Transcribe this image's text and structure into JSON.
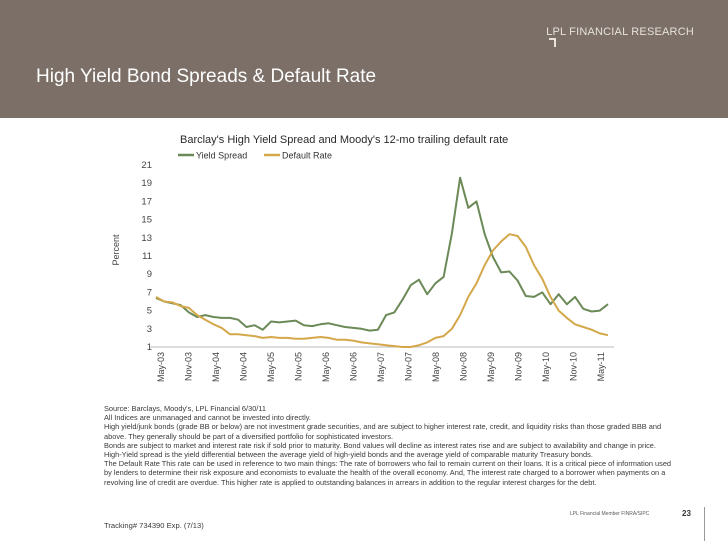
{
  "header": {
    "brand": "LPL FINANCIAL RESEARCH",
    "title": "High Yield Bond Spreads & Default Rate"
  },
  "chart_data": {
    "type": "line",
    "title": "Barclay's High Yield Spread and Moody's 12-mo trailing default rate",
    "ylabel": "Percent",
    "xlabel": "",
    "ylim": [
      1,
      21
    ],
    "yticks": [
      1,
      3,
      5,
      7,
      9,
      11,
      13,
      15,
      17,
      19,
      21
    ],
    "xticks": [
      "May-03",
      "Nov-03",
      "May-04",
      "Nov-04",
      "May-05",
      "Nov-05",
      "May-06",
      "Nov-06",
      "May-07",
      "Nov-07",
      "May-08",
      "Nov-08",
      "May-09",
      "Nov-09",
      "May-10",
      "Nov-10",
      "May-11"
    ],
    "grid": false,
    "legend_position": "top",
    "series": [
      {
        "name": "Yield Spread",
        "color": "#6b8a57",
        "values": [
          6.4,
          6.0,
          5.8,
          5.6,
          4.8,
          4.3,
          4.5,
          4.3,
          4.2,
          4.2,
          4.0,
          3.2,
          3.4,
          2.9,
          3.8,
          3.7,
          3.8,
          3.9,
          3.4,
          3.3,
          3.5,
          3.6,
          3.4,
          3.2,
          3.1,
          3.0,
          2.8,
          2.9,
          4.5,
          4.8,
          6.2,
          7.8,
          8.4,
          6.8,
          8.0,
          8.7,
          13.5,
          19.6,
          16.3,
          17.0,
          13.4,
          10.9,
          9.2,
          9.3,
          8.3,
          6.6,
          6.5,
          7.0,
          5.7,
          6.8,
          5.7,
          6.5,
          5.2,
          4.9,
          5.0,
          5.7
        ]
      },
      {
        "name": "Default Rate",
        "color": "#d4a84a",
        "values": [
          6.5,
          6.0,
          5.9,
          5.5,
          5.3,
          4.5,
          4.0,
          3.5,
          3.1,
          2.4,
          2.4,
          2.3,
          2.2,
          2.0,
          2.1,
          2.0,
          2.0,
          1.9,
          1.9,
          2.0,
          2.1,
          2.0,
          1.8,
          1.8,
          1.7,
          1.5,
          1.4,
          1.3,
          1.2,
          1.1,
          1.0,
          1.0,
          1.2,
          1.5,
          2.0,
          2.2,
          3.0,
          4.5,
          6.5,
          8.0,
          10.0,
          11.6,
          12.6,
          13.4,
          13.2,
          12.0,
          10.0,
          8.5,
          6.5,
          5.0,
          4.2,
          3.5,
          3.2,
          2.9,
          2.5,
          2.3
        ]
      }
    ]
  },
  "notes": [
    "Source: Barclays, Moody's, LPL Financial 6/30/11",
    "All Indices are unmanaged and cannot be invested into directly.",
    "High yield/junk bonds (grade BB or below) are not investment grade securities, and are subject to higher interest rate, credit, and liquidity risks than those graded BBB and above. They generally should be part of a diversified portfolio for sophisticated investors.",
    "Bonds are subject to market and interest rate risk if sold prior to maturity. Bond values will decline as interest rates rise and are subject to availability and change in price.",
    "High-Yield spread is the yield differential between the average yield of high-yield bonds and the average yield of comparable maturity Treasury bonds.",
    "The Default Rate This rate can be used in reference to two main things: The rate of borrowers who fail to remain current on their loans. It is a critical piece of information used by lenders to determine their risk exposure and economists to evaluate the health of the overall economy. And, The interest rate charged to a borrower when payments on a revolving line of credit are overdue. This higher rate is applied to outstanding balances in arrears in addition to the regular interest charges for the debt."
  ],
  "footer": {
    "tracking": "Tracking# 734390 Exp. (7/13)",
    "brand_small": "LPL Financial  Member FINRA/SIPC",
    "page_number": "23"
  }
}
